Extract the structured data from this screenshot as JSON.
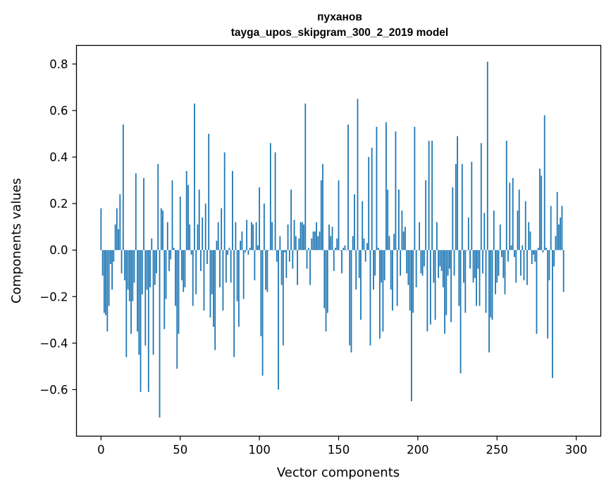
{
  "chart_data": {
    "type": "bar",
    "title": "пуханов",
    "subtitle": "tayga_upos_skipgram_300_2_2019 model",
    "xlabel": "Vector components",
    "ylabel": "Components values",
    "xlim": [
      -15.5,
      315.5
    ],
    "ylim": [
      -0.8,
      0.88
    ],
    "xticks": [
      0,
      50,
      100,
      150,
      200,
      250,
      300
    ],
    "yticks": [
      -0.6,
      -0.4,
      -0.2,
      0.0,
      0.2,
      0.4,
      0.6,
      0.8
    ],
    "ytick_labels": [
      "−0.6",
      "−0.4",
      "−0.2",
      "0.0",
      "0.2",
      "0.4",
      "0.6",
      "0.8"
    ],
    "bar_color": "#1f77b4",
    "grid": false,
    "values": [
      0.18,
      -0.11,
      -0.27,
      -0.28,
      -0.35,
      -0.24,
      -0.06,
      -0.17,
      -0.05,
      0.11,
      0.18,
      0.09,
      0.24,
      -0.1,
      0.54,
      -0.13,
      -0.46,
      -0.17,
      -0.22,
      -0.36,
      -0.22,
      -0.14,
      0.33,
      -0.35,
      -0.45,
      -0.61,
      -0.19,
      0.31,
      -0.41,
      -0.17,
      -0.61,
      -0.16,
      0.05,
      -0.45,
      -0.15,
      -0.1,
      0.37,
      -0.72,
      0.18,
      0.17,
      -0.34,
      -0.21,
      0.12,
      -0.09,
      -0.04,
      0.3,
      0.01,
      -0.24,
      -0.51,
      -0.36,
      0.23,
      -0.13,
      -0.18,
      -0.16,
      0.34,
      0.28,
      0.11,
      -0.02,
      -0.24,
      0.63,
      -0.19,
      0.11,
      0.26,
      -0.09,
      0.14,
      -0.26,
      0.2,
      -0.06,
      0.5,
      -0.29,
      -0.19,
      -0.33,
      -0.43,
      0.04,
      0.12,
      -0.16,
      0.18,
      -0.26,
      0.42,
      -0.14,
      -0.02,
      0.01,
      -0.14,
      0.34,
      -0.46,
      0.12,
      -0.22,
      -0.33,
      0.04,
      0.08,
      -0.21,
      -0.01,
      0.13,
      -0.02,
      0.01,
      0.12,
      0.11,
      -0.13,
      0.12,
      0.02,
      0.27,
      -0.37,
      -0.54,
      0.2,
      -0.17,
      -0.18,
      0.0,
      0.46,
      0.12,
      0.0,
      0.42,
      -0.05,
      -0.6,
      0.06,
      -0.15,
      -0.41,
      -0.01,
      -0.12,
      0.11,
      -0.05,
      0.26,
      -0.08,
      0.13,
      0.06,
      -0.15,
      0.05,
      0.12,
      0.12,
      0.11,
      0.63,
      -0.08,
      0.01,
      -0.15,
      0.05,
      0.08,
      0.08,
      0.12,
      0.06,
      0.08,
      0.3,
      0.37,
      -0.25,
      -0.35,
      -0.27,
      0.11,
      0.06,
      0.1,
      -0.09,
      0.01,
      0.05,
      0.3,
      0.0,
      -0.1,
      0.01,
      0.02,
      0.0,
      0.54,
      -0.41,
      -0.44,
      0.06,
      0.24,
      -0.17,
      0.65,
      -0.12,
      -0.3,
      0.21,
      0.05,
      -0.05,
      0.03,
      0.4,
      -0.41,
      0.44,
      -0.17,
      -0.11,
      0.53,
      0.01,
      -0.38,
      -0.14,
      -0.35,
      -0.13,
      0.55,
      0.26,
      0.06,
      -0.17,
      -0.26,
      0.07,
      0.51,
      -0.24,
      0.26,
      -0.11,
      0.17,
      0.08,
      0.1,
      -0.1,
      -0.15,
      -0.26,
      -0.65,
      -0.27,
      0.53,
      -0.16,
      0.0,
      0.12,
      -0.1,
      -0.11,
      -0.07,
      0.3,
      -0.35,
      0.47,
      -0.32,
      0.47,
      -0.14,
      -0.3,
      0.12,
      -0.12,
      -0.07,
      -0.09,
      -0.16,
      -0.36,
      -0.28,
      -0.11,
      -0.08,
      -0.31,
      0.27,
      -0.11,
      0.37,
      0.49,
      -0.24,
      -0.53,
      0.37,
      -0.14,
      -0.27,
      0.0,
      0.14,
      -0.08,
      0.38,
      -0.14,
      -0.12,
      -0.24,
      -0.08,
      -0.24,
      0.46,
      -0.1,
      0.16,
      -0.27,
      0.81,
      -0.44,
      -0.29,
      -0.3,
      0.17,
      -0.19,
      -0.14,
      -0.11,
      0.11,
      -0.03,
      -0.12,
      -0.19,
      0.47,
      -0.05,
      0.29,
      0.02,
      0.31,
      -0.03,
      -0.14,
      0.17,
      0.26,
      -0.11,
      0.02,
      -0.13,
      0.21,
      -0.15,
      0.12,
      0.08,
      -0.06,
      -0.02,
      -0.05,
      -0.36,
      0.01,
      0.35,
      0.32,
      -0.01,
      0.58,
      0.01,
      -0.38,
      -0.13,
      0.19,
      -0.55,
      -0.07,
      0.06,
      0.25,
      0.11,
      0.14,
      0.19,
      -0.18
    ]
  }
}
